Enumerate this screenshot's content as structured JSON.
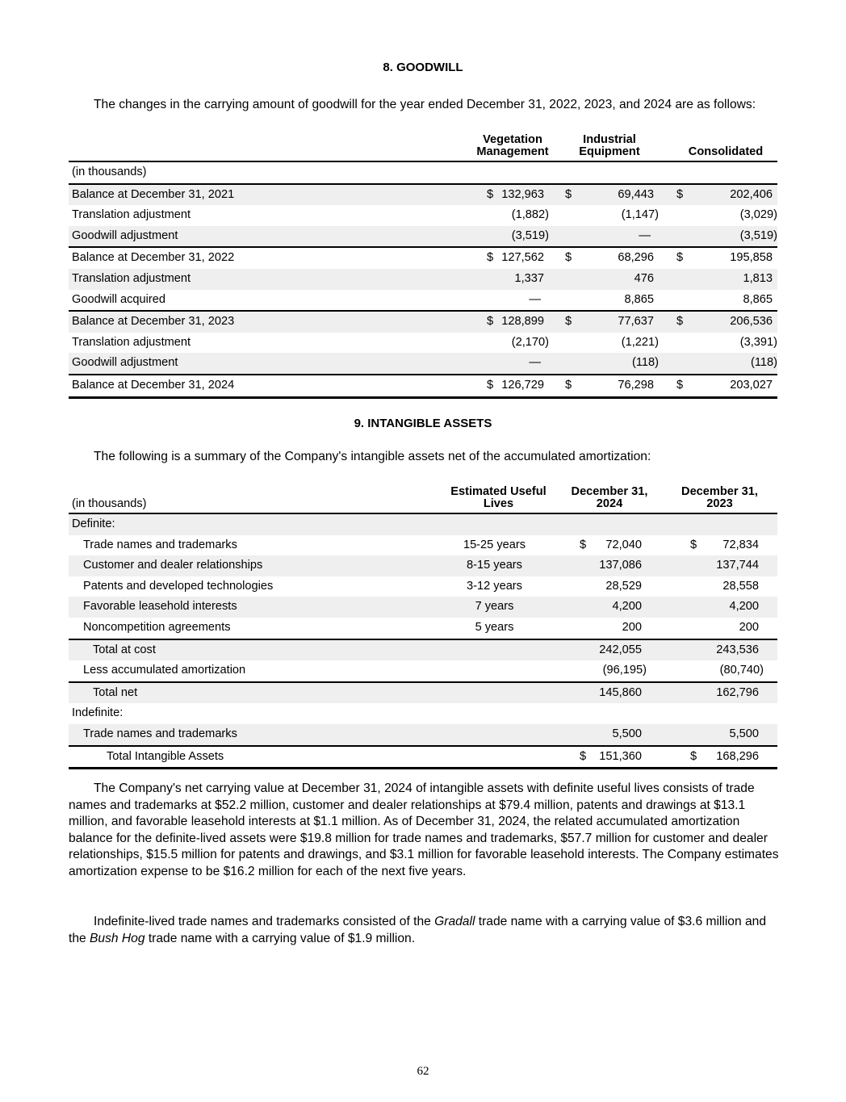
{
  "goodwill": {
    "title": "8. GOODWILL",
    "intro": "The changes in the carrying amount of goodwill for the year ended December 31, 2022, 2023, and 2024 are as follows:",
    "headers": [
      [
        "Vegetation",
        "Management"
      ],
      [
        "Industrial",
        "Equipment"
      ],
      [
        "",
        "Consolidated"
      ]
    ],
    "units": "(in thousands)",
    "rows": [
      {
        "label": "Balance at December 31, 2021",
        "values": [
          "132,963",
          "69,443",
          "202,406"
        ],
        "dollar": true
      },
      {
        "label": "Translation adjustment",
        "values": [
          "(1,882)",
          "(1,147)",
          "(3,029)"
        ]
      },
      {
        "label": "Goodwill adjustment",
        "values": [
          "(3,519)",
          "—",
          "(3,519)"
        ]
      },
      {
        "label": "Balance at December 31, 2022",
        "values": [
          "127,562",
          "68,296",
          "195,858"
        ],
        "dollar": true
      },
      {
        "label": "Translation adjustment",
        "values": [
          "1,337",
          "476",
          "1,813"
        ]
      },
      {
        "label": "Goodwill acquired",
        "values": [
          "—",
          "8,865",
          "8,865"
        ]
      },
      {
        "label": "Balance at December 31, 2023",
        "values": [
          "128,899",
          "77,637",
          "206,536"
        ],
        "dollar": true
      },
      {
        "label": "Translation adjustment",
        "values": [
          "(2,170)",
          "(1,221)",
          "(3,391)"
        ]
      },
      {
        "label": "Goodwill adjustment",
        "values": [
          "—",
          "(118)",
          "(118)"
        ]
      },
      {
        "label": "Balance at December 31, 2024",
        "values": [
          "126,729",
          "76,298",
          "203,027"
        ],
        "dollar": true
      }
    ]
  },
  "intangibles": {
    "title": "9. INTANGIBLE ASSETS",
    "intro": "The following is a summary of the Company's intangible assets net of the accumulated amortization:",
    "units": "(in thousands)",
    "headers": [
      [
        "Estimated Useful",
        "Lives"
      ],
      [
        "December 31,",
        "2024"
      ],
      [
        "December 31,",
        "2023"
      ]
    ],
    "rows": [
      {
        "label": "Definite:",
        "indent": 0,
        "lives": "",
        "values": [
          "",
          ""
        ]
      },
      {
        "label": "Trade names and trademarks",
        "indent": 1,
        "lives": "15-25 years",
        "values": [
          "72,040",
          "72,834"
        ],
        "dollar": true
      },
      {
        "label": "Customer and dealer relationships",
        "indent": 1,
        "lives": "8-15 years",
        "values": [
          "137,086",
          "137,744"
        ]
      },
      {
        "label": "Patents and developed technologies",
        "indent": 1,
        "lives": "3-12 years",
        "values": [
          "28,529",
          "28,558"
        ]
      },
      {
        "label": "Favorable leasehold interests",
        "indent": 1,
        "lives": "7 years",
        "values": [
          "4,200",
          "4,200"
        ]
      },
      {
        "label": "Noncompetition agreements",
        "indent": 1,
        "lives": "5 years",
        "values": [
          "200",
          "200"
        ]
      },
      {
        "label": "Total at cost",
        "indent": 2,
        "lives": "",
        "values": [
          "242,055",
          "243,536"
        ]
      },
      {
        "label": "Less accumulated amortization",
        "indent": 1,
        "lives": "",
        "values": [
          "(96,195)",
          "(80,740)"
        ]
      },
      {
        "label": "Total net",
        "indent": 2,
        "lives": "",
        "values": [
          "145,860",
          "162,796"
        ]
      },
      {
        "label": "Indefinite:",
        "indent": 0,
        "lives": "",
        "values": [
          "",
          ""
        ]
      },
      {
        "label": "Trade names and trademarks",
        "indent": 1,
        "lives": "",
        "values": [
          "5,500",
          "5,500"
        ]
      },
      {
        "label": "Total Intangible Assets",
        "indent": 3,
        "lives": "",
        "values": [
          "151,360",
          "168,296"
        ],
        "dollar": true
      }
    ]
  },
  "para1": "The Company's net carrying value at December 31, 2024 of intangible assets with definite useful lives consists of trade names and trademarks at $52.2 million, customer and dealer relationships at $79.4 million, patents and drawings at $13.1 million, and favorable leasehold interests at $1.1 million.  As of December 31, 2024, the related accumulated amortization balance for the definite-lived assets were $19.8 million for trade names and trademarks, $57.7 million for customer and dealer relationships, $15.5 million for patents and drawings, and $3.1 million for favorable leasehold interests.  The Company estimates amortization expense to be $16.2 million for each of the next five years.",
  "para2": {
    "a": "Indefinite-lived trade names and trademarks consisted of the ",
    "b": "Gradall",
    "c": " trade name with a carrying value of $3.6 million and the ",
    "d": "Bush Hog",
    "e": " trade name with a carrying value of $1.9 million."
  },
  "page_number": "62"
}
